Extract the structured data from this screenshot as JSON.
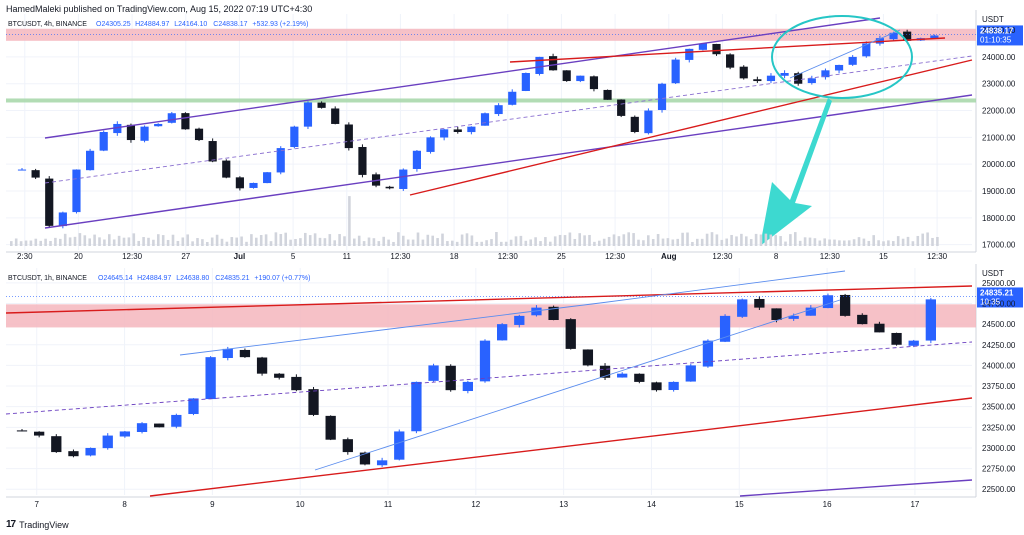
{
  "header": "HamedMaleki published on TradingView.com, Aug 15, 2022 07:19 UTC+4:30",
  "footer_brand": "TradingView",
  "chart_data": [
    {
      "type": "candlestick",
      "symbol": "BTCUSDT, 4h, BINANCE",
      "ohlc_text": {
        "o": "O24305.25",
        "h": "H24884.97",
        "l": "L24164.10",
        "c": "C24838.17",
        "chg": "+532.93 (+2.19%)"
      },
      "currency": "USDT",
      "x_ticks": [
        "2:30",
        "20",
        "12:30",
        "27",
        "Jul",
        "5",
        "11",
        "12:30",
        "18",
        "12:30",
        "25",
        "12:30",
        "Aug",
        "12:30",
        "8",
        "12:30",
        "15",
        "12:30"
      ],
      "y_ticks": [
        "25000.00",
        "24000.00",
        "23000.00",
        "22000.00",
        "21000.00",
        "20000.00",
        "19000.00",
        "18000.00",
        "17000.00"
      ],
      "ylim": [
        16800,
        25600
      ],
      "last_price": "24838.17",
      "countdown": "01:10:35",
      "zones": [
        {
          "color": "#f4b6bd",
          "from": 24600,
          "to": 25050
        },
        {
          "color": "#a5d6a7",
          "from": 22300,
          "to": 22450
        }
      ],
      "close_path": [
        19800,
        19500,
        17700,
        18200,
        19800,
        20500,
        21200,
        21500,
        20900,
        21400,
        21500,
        21900,
        21300,
        20900,
        20100,
        19500,
        19100,
        19300,
        19700,
        20600,
        21400,
        22300,
        22100,
        21500,
        20600,
        19600,
        19200,
        19100,
        19800,
        20500,
        21000,
        21300,
        21200,
        21400,
        21900,
        22200,
        22700,
        23400,
        24000,
        23500,
        23100,
        23300,
        22800,
        22400,
        21800,
        21200,
        22000,
        23000,
        23900,
        24300,
        24500,
        24100,
        23600,
        23200,
        23100,
        23300,
        23400,
        23000,
        23200,
        23500,
        23700,
        24000,
        24500,
        24700,
        24900,
        24600,
        24700,
        24800
      ]
    },
    {
      "type": "candlestick",
      "symbol": "BTCUSDT, 1h, BINANCE",
      "ohlc_text": {
        "o": "O24645.14",
        "h": "H24884.97",
        "l": "L24638.80",
        "c": "C24835.21",
        "chg": "+190.07 (+0.77%)"
      },
      "currency": "USDT",
      "x_ticks": [
        "7",
        "8",
        "9",
        "10",
        "11",
        "12",
        "13",
        "14",
        "15",
        "16",
        "17"
      ],
      "y_ticks": [
        "25000.00",
        "24750.00",
        "24500.00",
        "24250.00",
        "24000.00",
        "23750.00",
        "23500.00",
        "23250.00",
        "23000.00",
        "22750.00",
        "22500.00"
      ],
      "ylim": [
        22430,
        25180
      ],
      "last_price": "24835.21",
      "countdown": "10:35",
      "zones": [
        {
          "color": "#f4b6bd",
          "from": 24460,
          "to": 24740
        }
      ],
      "close_path": [
        23200,
        23150,
        22950,
        22900,
        23000,
        23150,
        23200,
        23300,
        23250,
        23400,
        23600,
        24100,
        24200,
        24100,
        23900,
        23850,
        23700,
        23400,
        23100,
        22950,
        22800,
        22850,
        23200,
        23800,
        24000,
        23700,
        23800,
        24300,
        24500,
        24600,
        24700,
        24550,
        24200,
        24000,
        23850,
        23900,
        23800,
        23700,
        23800,
        24000,
        24300,
        24600,
        24800,
        24700,
        24550,
        24600,
        24700,
        24850,
        24600,
        24500,
        24400,
        24250,
        24300,
        24800
      ]
    }
  ]
}
